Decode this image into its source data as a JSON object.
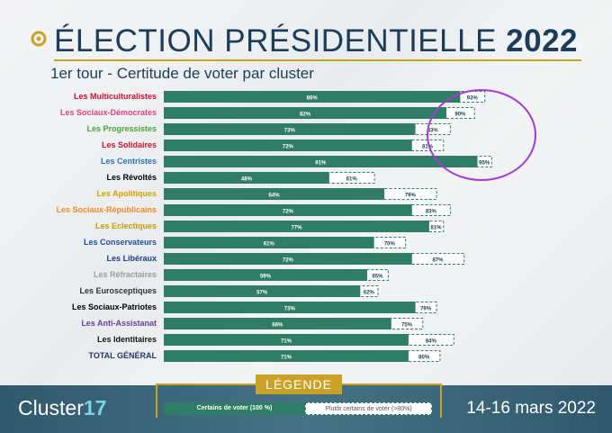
{
  "header": {
    "title_light": "ÉLECTION PRÉSIDENTIELLE",
    "title_bold": "2022",
    "subtitle": "1er tour - Certitude de voter par cluster"
  },
  "chart_data": {
    "type": "bar",
    "orientation": "horizontal",
    "categories": [
      "Les Multiculturalistes",
      "Les Sociaux-Démocrates",
      "Les Progressistes",
      "Les Solidaires",
      "Les Centristes",
      "Les Révoltés",
      "Les Apolitiques",
      "Les Sociaux-Républicains",
      "Les Eclectiques",
      "Les Conservateurs",
      "Les Libéraux",
      "Les Réfractaires",
      "Les Eurosceptiques",
      "Les Sociaux-Patriotes",
      "Les Anti-Assistanat",
      "Les Identitaires",
      "TOTAL GÉNÉRAL"
    ],
    "category_colors": [
      "#c8102e",
      "#e0447a",
      "#4aa33a",
      "#c8102e",
      "#2a72b5",
      "#000000",
      "#d6a100",
      "#f08a24",
      "#c89b00",
      "#1f4e9c",
      "#1f3a8a",
      "#9a9a9a",
      "#333333",
      "#000000",
      "#6a3d9a",
      "#111111",
      "#1f3a6b"
    ],
    "series": [
      {
        "name": "Certains de voter (100 %)",
        "values": [
          86,
          82,
          73,
          72,
          91,
          48,
          64,
          72,
          77,
          61,
          72,
          59,
          57,
          73,
          66,
          71,
          71
        ],
        "labels": [
          "86%",
          "82%",
          "73%",
          "72%",
          "91%",
          "48%",
          "64%",
          "72%",
          "77%",
          "61%",
          "72%",
          "59%",
          "57%",
          "73%",
          "66%",
          "71%",
          "71%"
        ]
      },
      {
        "name": "Plutôt certains de voter (>80%)",
        "values": [
          93,
          90,
          83,
          81,
          95,
          61,
          79,
          83,
          81,
          70,
          87,
          65,
          62,
          79,
          75,
          84,
          80
        ],
        "labels": [
          "93%",
          "90%",
          "83%",
          "81%",
          "95%",
          "61%",
          "79%",
          "83%",
          "81%",
          "70%",
          "87%",
          "65%",
          "62%",
          "79%",
          "75%",
          "84%",
          "80%"
        ]
      }
    ],
    "xlim": [
      0,
      100
    ],
    "colors": {
      "certain": "#2e7d64",
      "plutot_border": "#2e7d64",
      "highlight": "#a43cd6"
    }
  },
  "legend": {
    "title": "LÉGENDE",
    "certain_label": "Certains de voter (100 %)",
    "plutot_label": "Plutôt certains de voter (>80%)"
  },
  "footer": {
    "brand_light": "Cluster",
    "brand_bold": "17",
    "dates": "14-16 mars 2022"
  }
}
